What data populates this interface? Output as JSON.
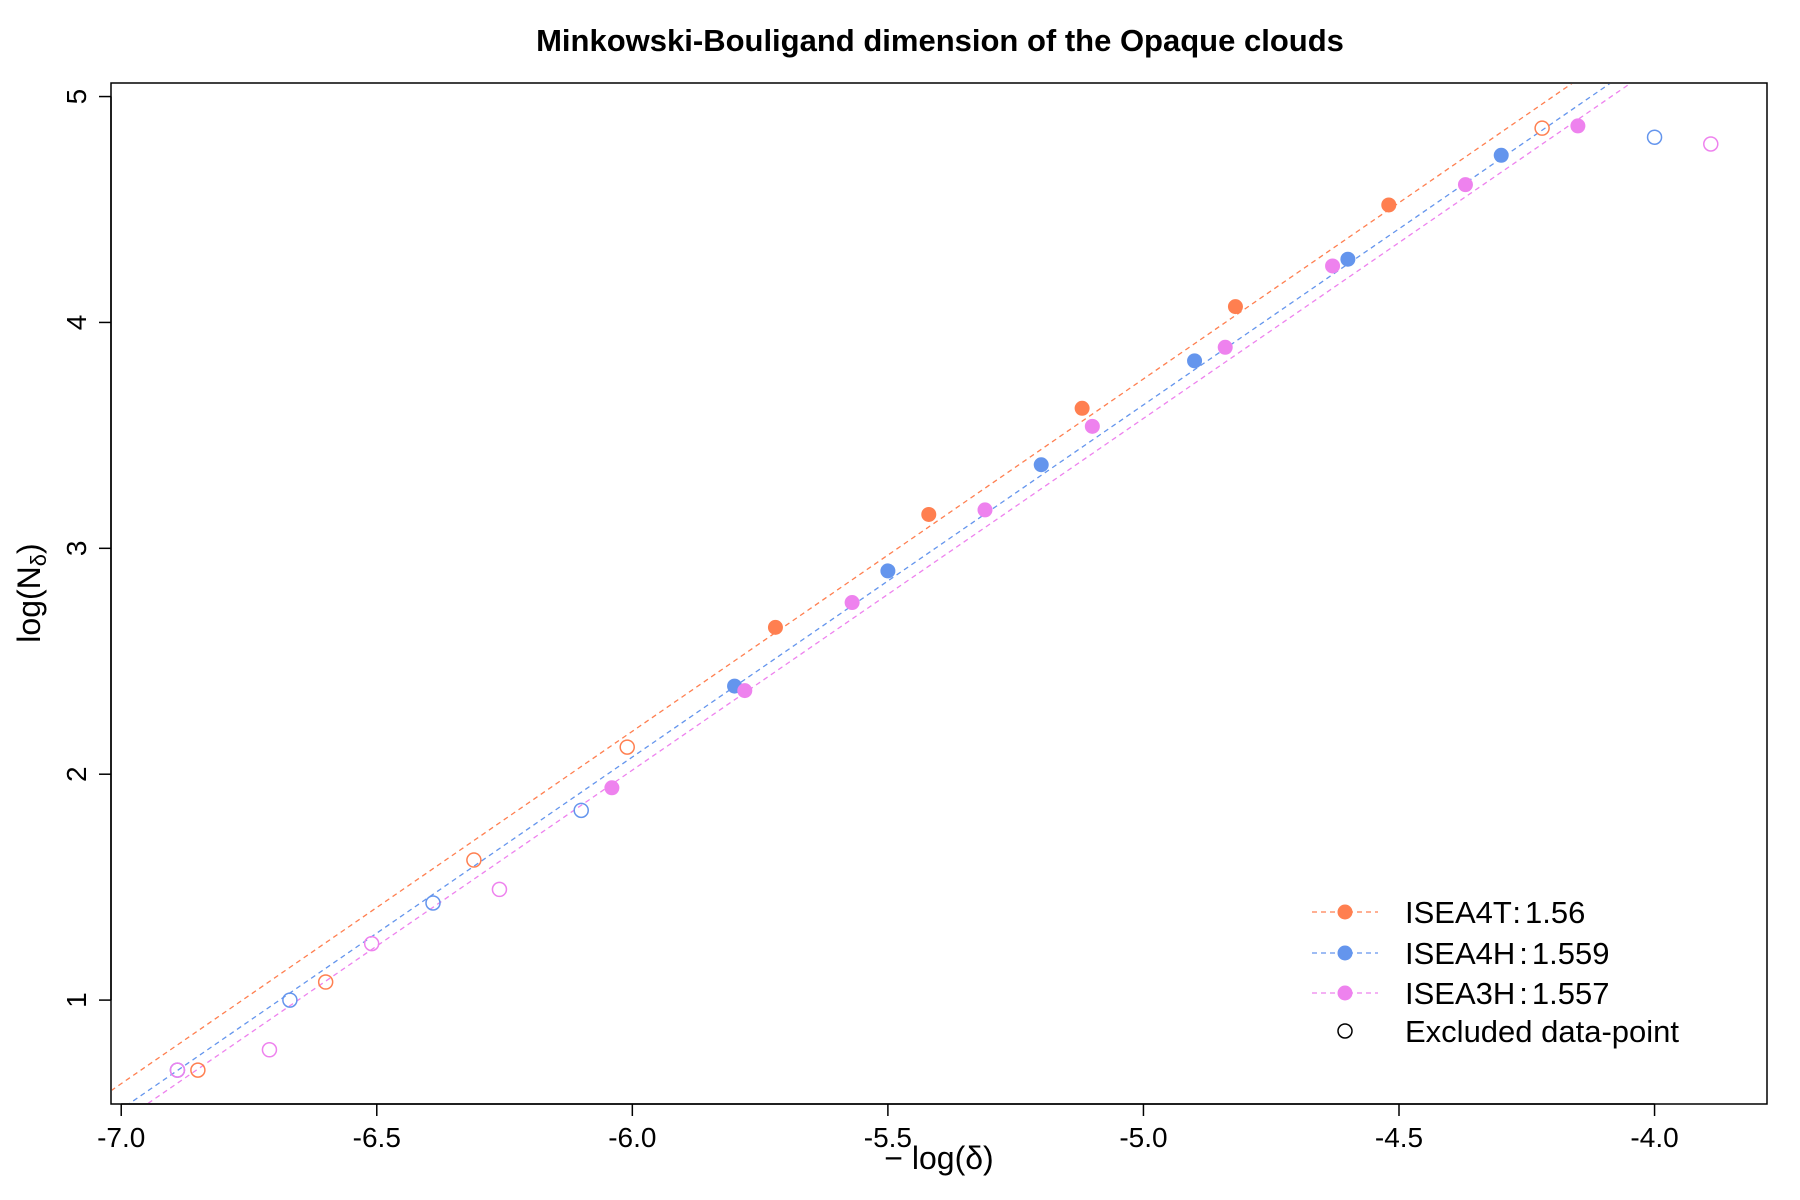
{
  "chart_data": {
    "type": "scatter",
    "title": "Minkowski-Bouligand dimension of the Opaque clouds",
    "xlabel_prefix": "− log(",
    "xlabel_symbol": "δ",
    "xlabel_suffix": ")",
    "ylabel_prefix": "log(N",
    "ylabel_sub": "δ",
    "ylabel_suffix": ")",
    "xlim": [
      -7.02,
      -3.78
    ],
    "ylim": [
      0.54,
      5.06
    ],
    "x_ticks": [
      -7.0,
      -6.5,
      -6.0,
      -5.5,
      -5.0,
      -4.5,
      -4.0
    ],
    "x_tick_labels": [
      "-7.0",
      "-6.5",
      "-6.0",
      "-5.5",
      "-5.0",
      "-4.5",
      "-4.0"
    ],
    "y_ticks": [
      1,
      2,
      3,
      4,
      5
    ],
    "y_tick_labels": [
      "1",
      "2",
      "3",
      "4",
      "5"
    ],
    "grid": false,
    "legend_position": "bottom-right",
    "series": [
      {
        "name": "ISEA4T",
        "legend_value": "1.56",
        "color": "#FF7F50",
        "fit": {
          "slope": 1.56,
          "intercept": 11.55
        },
        "points": [
          {
            "x": -6.85,
            "y": 0.69,
            "excluded": true
          },
          {
            "x": -6.6,
            "y": 1.08,
            "excluded": true
          },
          {
            "x": -6.31,
            "y": 1.62,
            "excluded": true
          },
          {
            "x": -6.01,
            "y": 2.12,
            "excluded": true
          },
          {
            "x": -5.72,
            "y": 2.65,
            "excluded": false
          },
          {
            "x": -5.42,
            "y": 3.15,
            "excluded": false
          },
          {
            "x": -5.12,
            "y": 3.62,
            "excluded": false
          },
          {
            "x": -4.82,
            "y": 4.07,
            "excluded": false
          },
          {
            "x": -4.52,
            "y": 4.52,
            "excluded": false
          },
          {
            "x": -4.22,
            "y": 4.86,
            "excluded": true
          }
        ]
      },
      {
        "name": "ISEA4H",
        "legend_value": "1.559",
        "color": "#6495ED",
        "fit": {
          "slope": 1.559,
          "intercept": 11.43
        },
        "points": [
          {
            "x": -6.89,
            "y": 0.69,
            "excluded": true
          },
          {
            "x": -6.67,
            "y": 1.0,
            "excluded": true
          },
          {
            "x": -6.39,
            "y": 1.43,
            "excluded": true
          },
          {
            "x": -6.1,
            "y": 1.84,
            "excluded": true
          },
          {
            "x": -5.8,
            "y": 2.39,
            "excluded": false
          },
          {
            "x": -5.5,
            "y": 2.9,
            "excluded": false
          },
          {
            "x": -5.2,
            "y": 3.37,
            "excluded": false
          },
          {
            "x": -4.9,
            "y": 3.83,
            "excluded": false
          },
          {
            "x": -4.6,
            "y": 4.28,
            "excluded": false
          },
          {
            "x": -4.3,
            "y": 4.74,
            "excluded": false
          },
          {
            "x": -4.0,
            "y": 4.82,
            "excluded": true
          }
        ]
      },
      {
        "name": "ISEA3H",
        "legend_value": "1.557",
        "color": "#EE82EE",
        "fit": {
          "slope": 1.557,
          "intercept": 11.36
        },
        "points": [
          {
            "x": -6.89,
            "y": 0.69,
            "excluded": true
          },
          {
            "x": -6.71,
            "y": 0.78,
            "excluded": true
          },
          {
            "x": -6.51,
            "y": 1.25,
            "excluded": true
          },
          {
            "x": -6.26,
            "y": 1.49,
            "excluded": true
          },
          {
            "x": -6.04,
            "y": 1.94,
            "excluded": false
          },
          {
            "x": -5.78,
            "y": 2.37,
            "excluded": false
          },
          {
            "x": -5.57,
            "y": 2.76,
            "excluded": false
          },
          {
            "x": -5.31,
            "y": 3.17,
            "excluded": false
          },
          {
            "x": -5.1,
            "y": 3.54,
            "excluded": false
          },
          {
            "x": -4.84,
            "y": 3.89,
            "excluded": false
          },
          {
            "x": -4.63,
            "y": 4.25,
            "excluded": false
          },
          {
            "x": -4.37,
            "y": 4.61,
            "excluded": false
          },
          {
            "x": -4.15,
            "y": 4.87,
            "excluded": false
          },
          {
            "x": -3.89,
            "y": 4.79,
            "excluded": true
          }
        ]
      }
    ],
    "legend": {
      "entries": [
        {
          "label": "ISEA4T",
          "sep": ":",
          "value": "1.56",
          "color": "#FF7F50"
        },
        {
          "label": "ISEA4H",
          "sep": ":",
          "value": "1.559",
          "color": "#6495ED"
        },
        {
          "label": "ISEA3H",
          "sep": ":",
          "value": "1.557",
          "color": "#EE82EE"
        }
      ],
      "excluded_label": "Excluded data-point"
    }
  }
}
